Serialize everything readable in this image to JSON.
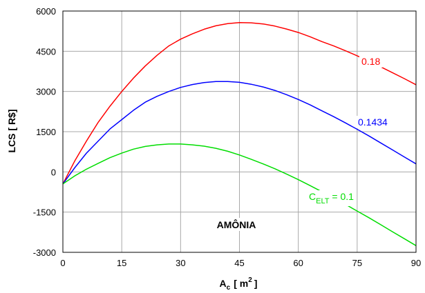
{
  "chart_data": {
    "type": "line",
    "title": "",
    "xlabel": {
      "main": "A",
      "sub": "c",
      "unit_open": "[ m",
      "unit_sup": "2",
      "unit_close": "]"
    },
    "ylabel": "LCS  [ R$]",
    "xlim": [
      0,
      90
    ],
    "ylim": [
      -3000,
      6000
    ],
    "xticks": [
      "0",
      "15",
      "30",
      "45",
      "60",
      "75",
      "90"
    ],
    "yticks": [
      "-3000",
      "-1500",
      "0",
      "1500",
      "3000",
      "4500",
      "6000"
    ],
    "grid": true,
    "annotation": "AMÔNIA",
    "series": [
      {
        "name": "0.18",
        "color": "#ff0000",
        "x": [
          0,
          3,
          6,
          9,
          12,
          15,
          18,
          21,
          24,
          27,
          30,
          33,
          36,
          39,
          42,
          45,
          48,
          51,
          54,
          57,
          60,
          63,
          66,
          69,
          72,
          75,
          78,
          81,
          84,
          87,
          90
        ],
        "y": [
          -450,
          400,
          1150,
          1850,
          2450,
          3000,
          3500,
          3950,
          4350,
          4700,
          4950,
          5150,
          5320,
          5450,
          5530,
          5570,
          5560,
          5520,
          5440,
          5330,
          5200,
          5040,
          4860,
          4700,
          4520,
          4330,
          4130,
          3920,
          3700,
          3480,
          3250
        ]
      },
      {
        "name": "0.1434",
        "color": "#0000ff",
        "x": [
          0,
          3,
          6,
          9,
          12,
          15,
          18,
          21,
          24,
          27,
          30,
          33,
          36,
          39,
          42,
          45,
          48,
          51,
          54,
          57,
          60,
          63,
          66,
          69,
          72,
          75,
          78,
          81,
          84,
          87,
          90
        ],
        "y": [
          -450,
          150,
          700,
          1150,
          1600,
          1950,
          2300,
          2600,
          2820,
          3000,
          3150,
          3260,
          3330,
          3370,
          3370,
          3340,
          3270,
          3170,
          3040,
          2880,
          2700,
          2500,
          2280,
          2060,
          1830,
          1590,
          1340,
          1080,
          820,
          560,
          300
        ]
      },
      {
        "name": "C",
        "name_sub": "ELT",
        "name_value": " = 0.1",
        "color": "#00dd00",
        "x": [
          0,
          3,
          6,
          9,
          12,
          15,
          18,
          21,
          24,
          27,
          30,
          33,
          36,
          39,
          42,
          45,
          48,
          51,
          54,
          57,
          60,
          63,
          66,
          69,
          72,
          75,
          78,
          81,
          84,
          87,
          90
        ],
        "y": [
          -450,
          -150,
          100,
          320,
          530,
          700,
          850,
          950,
          1010,
          1040,
          1040,
          1010,
          960,
          880,
          770,
          630,
          470,
          300,
          120,
          -80,
          -290,
          -510,
          -740,
          -970,
          -1210,
          -1460,
          -1710,
          -1970,
          -2230,
          -2490,
          -2750
        ]
      }
    ]
  }
}
